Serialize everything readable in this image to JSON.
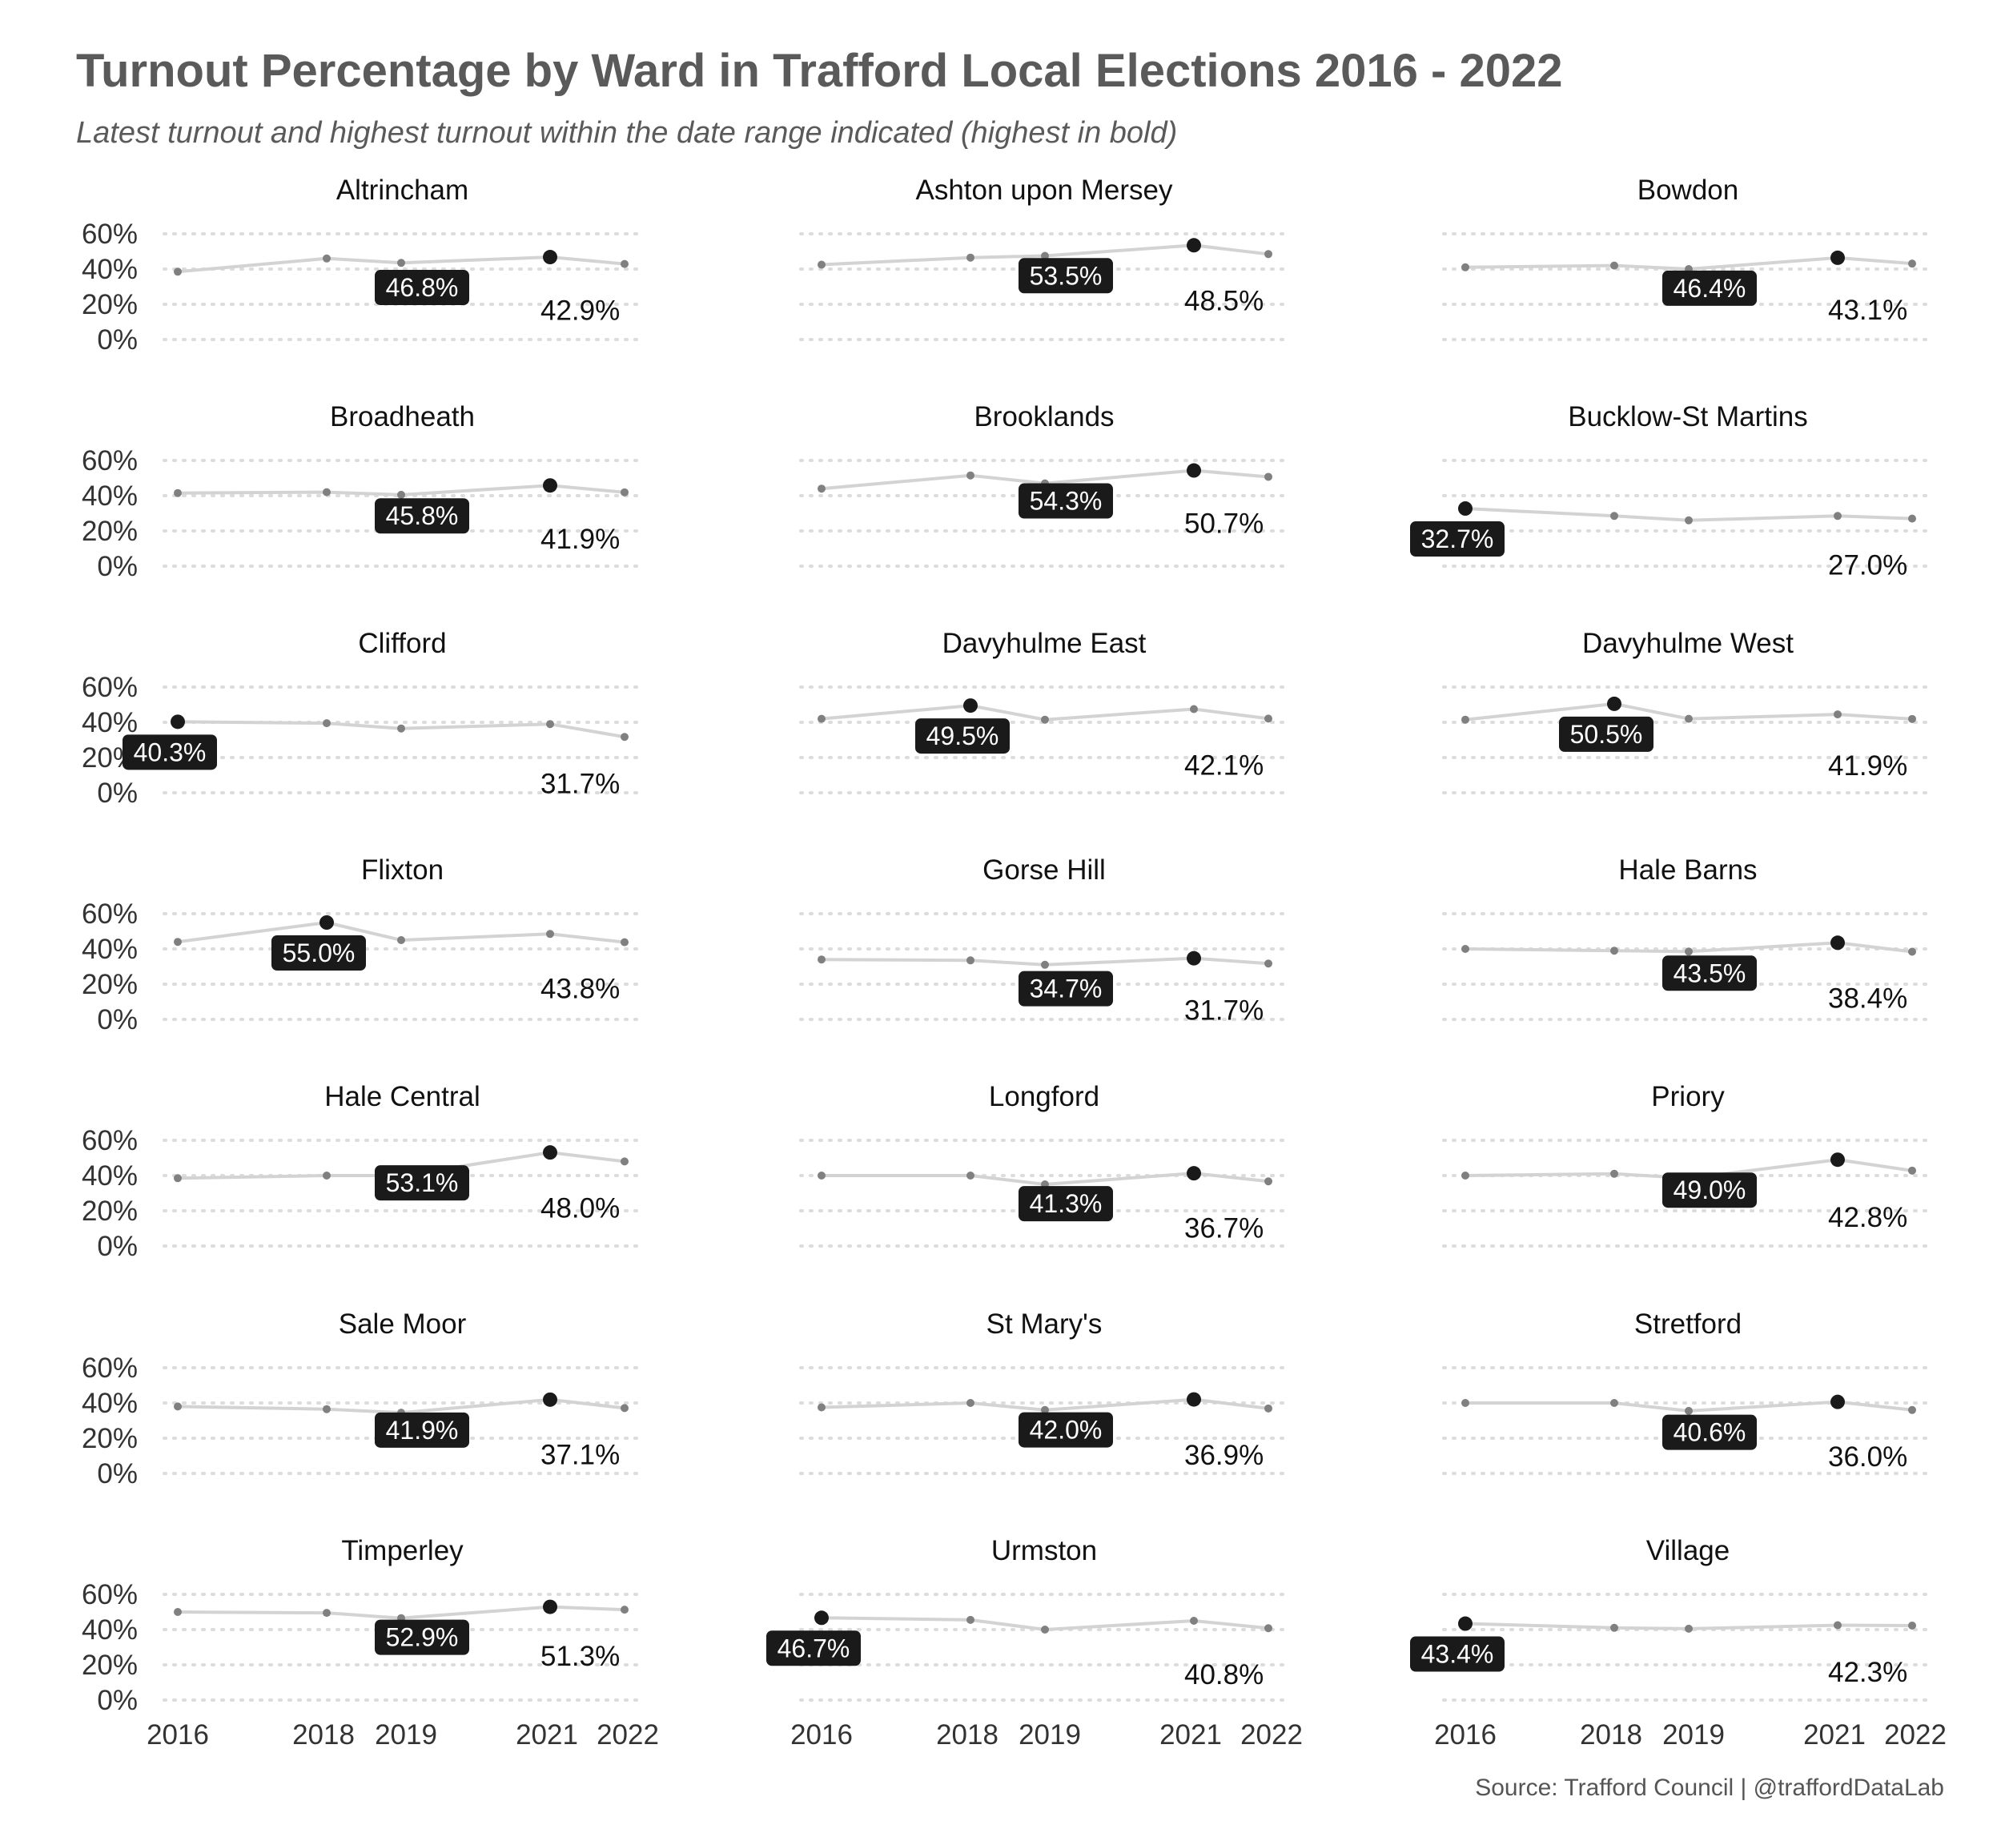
{
  "title": "Turnout Percentage by Ward in Trafford Local Elections 2016 - 2022",
  "subtitle": "Latest turnout and highest turnout within the date range indicated (highest in bold)",
  "caption": "Source: Trafford Council  |  @traffordDataLab",
  "colors": {
    "line": "#d3d3d3",
    "point": "#808080",
    "highlight": "#1a1a1a",
    "grid": "#dcdcdc"
  },
  "chart_data": {
    "type": "line",
    "facet": "small-multiples",
    "x": [
      2016,
      2018,
      2019,
      2021,
      2022
    ],
    "x_tick_labels": [
      "2016",
      "2018",
      "2019",
      "2021",
      "2022"
    ],
    "y_ticks": [
      0,
      20,
      40,
      60
    ],
    "y_tick_labels": [
      "0%",
      "20%",
      "40%",
      "60%"
    ],
    "ylim": [
      0,
      60
    ],
    "grid": "horizontal dotted",
    "panels": [
      {
        "ward": "Altrincham",
        "values": [
          38.5,
          46.0,
          43.5,
          46.8,
          42.9
        ],
        "highest": {
          "year": 2021,
          "label": "46.8%"
        },
        "latest_label": "42.9%"
      },
      {
        "ward": "Ashton upon Mersey",
        "values": [
          42.5,
          46.5,
          47.5,
          53.5,
          48.5
        ],
        "highest": {
          "year": 2021,
          "label": "53.5%"
        },
        "latest_label": "48.5%"
      },
      {
        "ward": "Bowdon",
        "values": [
          41.0,
          42.0,
          40.0,
          46.4,
          43.1
        ],
        "highest": {
          "year": 2021,
          "label": "46.4%"
        },
        "latest_label": "43.1%"
      },
      {
        "ward": "Broadheath",
        "values": [
          41.5,
          42.0,
          40.5,
          45.8,
          41.9
        ],
        "highest": {
          "year": 2021,
          "label": "45.8%"
        },
        "latest_label": "41.9%"
      },
      {
        "ward": "Brooklands",
        "values": [
          44.0,
          51.5,
          47.0,
          54.3,
          50.7
        ],
        "highest": {
          "year": 2021,
          "label": "54.3%"
        },
        "latest_label": "50.7%"
      },
      {
        "ward": "Bucklow-St Martins",
        "values": [
          32.7,
          28.5,
          26.0,
          28.5,
          27.0
        ],
        "highest": {
          "year": 2016,
          "label": "32.7%"
        },
        "latest_label": "27.0%"
      },
      {
        "ward": "Clifford",
        "values": [
          40.3,
          39.5,
          36.5,
          39.0,
          31.7
        ],
        "highest": {
          "year": 2016,
          "label": "40.3%"
        },
        "latest_label": "31.7%"
      },
      {
        "ward": "Davyhulme East",
        "values": [
          42.0,
          49.5,
          41.5,
          47.5,
          42.1
        ],
        "highest": {
          "year": 2018,
          "label": "49.5%"
        },
        "latest_label": "42.1%"
      },
      {
        "ward": "Davyhulme West",
        "values": [
          41.5,
          50.5,
          42.0,
          44.5,
          41.9
        ],
        "highest": {
          "year": 2018,
          "label": "50.5%"
        },
        "latest_label": "41.9%"
      },
      {
        "ward": "Flixton",
        "values": [
          44.0,
          55.0,
          45.0,
          48.5,
          43.8
        ],
        "highest": {
          "year": 2018,
          "label": "55.0%"
        },
        "latest_label": "43.8%"
      },
      {
        "ward": "Gorse Hill",
        "values": [
          34.0,
          33.5,
          31.0,
          34.7,
          31.7
        ],
        "highest": {
          "year": 2021,
          "label": "34.7%"
        },
        "latest_label": "31.7%"
      },
      {
        "ward": "Hale Barns",
        "values": [
          40.0,
          39.0,
          38.5,
          43.5,
          38.4
        ],
        "highest": {
          "year": 2021,
          "label": "43.5%"
        },
        "latest_label": "38.4%"
      },
      {
        "ward": "Hale Central",
        "values": [
          38.5,
          40.0,
          40.0,
          53.1,
          48.0
        ],
        "highest": {
          "year": 2021,
          "label": "53.1%"
        },
        "latest_label": "48.0%"
      },
      {
        "ward": "Longford",
        "values": [
          40.0,
          40.0,
          35.0,
          41.3,
          36.7
        ],
        "highest": {
          "year": 2021,
          "label": "41.3%"
        },
        "latest_label": "36.7%"
      },
      {
        "ward": "Priory",
        "values": [
          40.0,
          41.0,
          38.5,
          49.0,
          42.8
        ],
        "highest": {
          "year": 2021,
          "label": "49.0%"
        },
        "latest_label": "42.8%"
      },
      {
        "ward": "Sale Moor",
        "values": [
          38.0,
          36.5,
          34.5,
          41.9,
          37.1
        ],
        "highest": {
          "year": 2021,
          "label": "41.9%"
        },
        "latest_label": "37.1%"
      },
      {
        "ward": "St Mary's",
        "values": [
          37.5,
          40.0,
          36.0,
          42.0,
          36.9
        ],
        "highest": {
          "year": 2021,
          "label": "42.0%"
        },
        "latest_label": "36.9%"
      },
      {
        "ward": "Stretford",
        "values": [
          40.0,
          40.0,
          35.5,
          40.6,
          36.0
        ],
        "highest": {
          "year": 2021,
          "label": "40.6%"
        },
        "latest_label": "36.0%"
      },
      {
        "ward": "Timperley",
        "values": [
          50.0,
          49.5,
          46.5,
          52.9,
          51.3
        ],
        "highest": {
          "year": 2021,
          "label": "52.9%"
        },
        "latest_label": "51.3%"
      },
      {
        "ward": "Urmston",
        "values": [
          46.7,
          45.5,
          40.0,
          45.0,
          40.8
        ],
        "highest": {
          "year": 2016,
          "label": "46.7%"
        },
        "latest_label": "40.8%"
      },
      {
        "ward": "Village",
        "values": [
          43.4,
          41.0,
          40.5,
          42.5,
          42.3
        ],
        "highest": {
          "year": 2016,
          "label": "43.4%"
        },
        "latest_label": "42.3%"
      }
    ]
  }
}
